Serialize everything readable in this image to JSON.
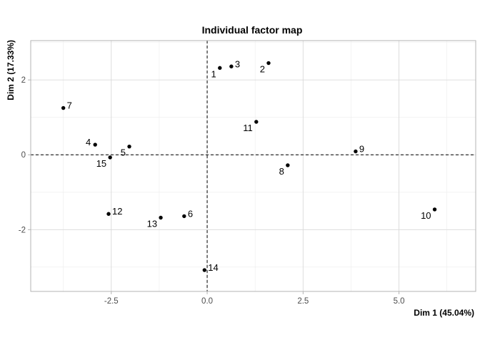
{
  "chart_data": {
    "type": "scatter",
    "title": "Individual factor map",
    "xlabel": "Dim 1 (45.04%)",
    "ylabel": "Dim 2 (17.33%)",
    "xlim": [
      -4.6,
      7.0
    ],
    "ylim": [
      -3.65,
      3.05
    ],
    "xticks": [
      -2.5,
      0.0,
      2.5,
      5.0
    ],
    "xtick_labels": [
      "-2.5",
      "0.0",
      "2.5",
      "5.0"
    ],
    "yticks": [
      -2,
      0,
      2
    ],
    "ytick_labels": [
      "-2",
      "0",
      "2"
    ],
    "grid": true,
    "zero_lines": true,
    "legend": "none",
    "point_color": "#000000",
    "points": [
      {
        "label": "1",
        "x": 0.33,
        "y": 2.32,
        "label_pos": "below-left"
      },
      {
        "label": "2",
        "x": 1.6,
        "y": 2.45,
        "label_pos": "below-left"
      },
      {
        "label": "3",
        "x": 0.63,
        "y": 2.36,
        "label_pos": "right"
      },
      {
        "label": "4",
        "x": -2.92,
        "y": 0.27,
        "label_pos": "left"
      },
      {
        "label": "5",
        "x": -2.03,
        "y": 0.22,
        "label_pos": "below-left"
      },
      {
        "label": "6",
        "x": -0.6,
        "y": -1.64,
        "label_pos": "right"
      },
      {
        "label": "7",
        "x": -3.75,
        "y": 1.25,
        "label_pos": "right"
      },
      {
        "label": "8",
        "x": 2.1,
        "y": -0.28,
        "label_pos": "below-left"
      },
      {
        "label": "9",
        "x": 3.87,
        "y": 0.09,
        "label_pos": "right"
      },
      {
        "label": "10",
        "x": 5.93,
        "y": -1.46,
        "label_pos": "below-left"
      },
      {
        "label": "11",
        "x": 1.28,
        "y": 0.88,
        "label_pos": "below-left"
      },
      {
        "label": "12",
        "x": -2.57,
        "y": -1.58,
        "label_pos": "right"
      },
      {
        "label": "13",
        "x": -1.21,
        "y": -1.68,
        "label_pos": "below-left"
      },
      {
        "label": "14",
        "x": -0.07,
        "y": -3.08,
        "label_pos": "right"
      },
      {
        "label": "15",
        "x": -2.53,
        "y": -0.07,
        "label_pos": "below-left"
      }
    ]
  }
}
